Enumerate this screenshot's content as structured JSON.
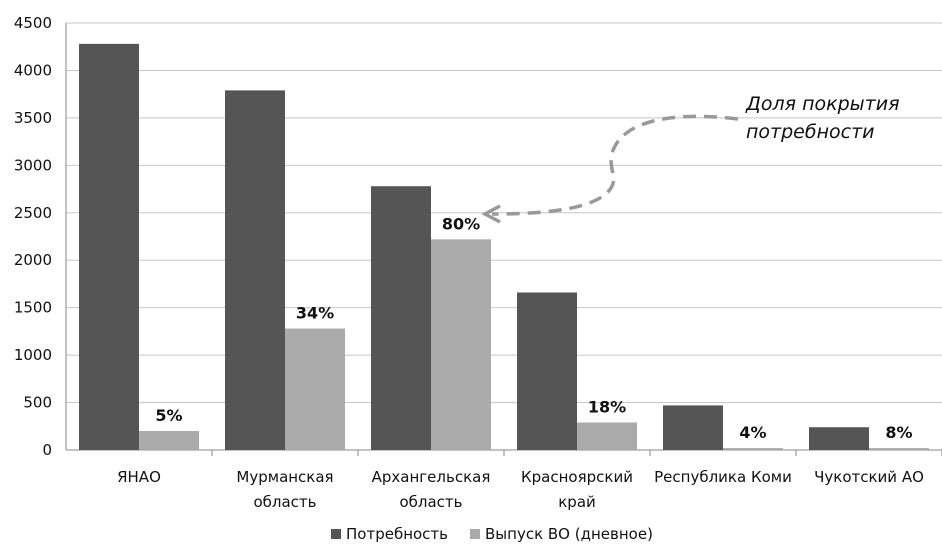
{
  "chart_data": {
    "type": "bar",
    "categories": [
      [
        "ЯНАО"
      ],
      [
        "Мурманская",
        "область"
      ],
      [
        "Архангельская",
        "область"
      ],
      [
        "Красноярский",
        "край"
      ],
      [
        "Республика Коми"
      ],
      [
        "Чукотский АО"
      ]
    ],
    "series": [
      {
        "name": "Потребность",
        "values": [
          4280,
          3790,
          2780,
          1660,
          470,
          240
        ],
        "color": "#555555"
      },
      {
        "name": "Выпуск ВО (дневное)",
        "values": [
          200,
          1280,
          2220,
          290,
          20,
          20
        ],
        "color": "#aaaaaa"
      }
    ],
    "data_labels": [
      "5%",
      "34%",
      "80%",
      "18%",
      "4%",
      "8%"
    ],
    "ylim": [
      0,
      4500
    ],
    "yticks": [
      0,
      500,
      1000,
      1500,
      2000,
      2500,
      3000,
      3500,
      4000,
      4500
    ],
    "grid": true,
    "legend_position": "bottom",
    "annotation": {
      "lines": [
        "Доля покрытия",
        "потребности"
      ],
      "points_to_category": 2
    }
  }
}
